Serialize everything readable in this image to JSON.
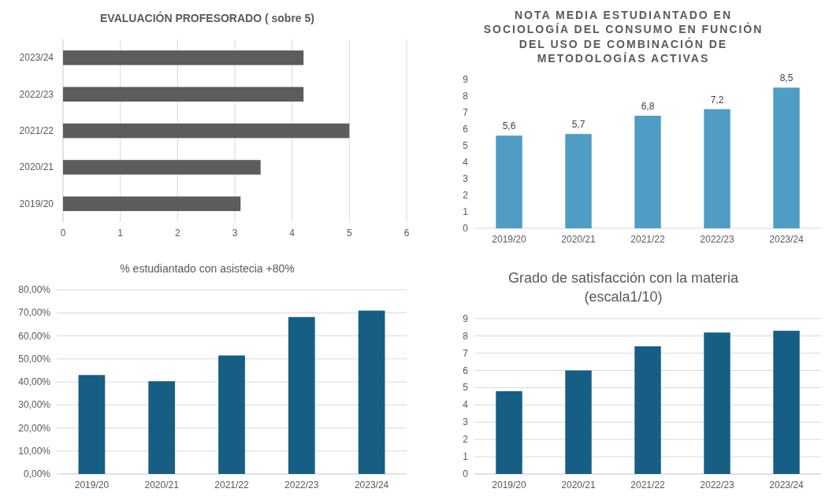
{
  "chart_data": [
    {
      "type": "bar",
      "title": "EVALUACIÓN PROFESORADO ( sobre 5)",
      "orientation": "horizontal",
      "categories": [
        "2023/24",
        "2022/23",
        "2021/22",
        "2020/21",
        "2019/20"
      ],
      "values": [
        4.2,
        4.2,
        5.0,
        3.45,
        3.1
      ],
      "color": "#5c5c5c",
      "xlim": [
        0,
        6
      ],
      "xticks": [
        0,
        1,
        2,
        3,
        4,
        5,
        6
      ],
      "grid": "x"
    },
    {
      "type": "bar",
      "title": "NOTA MEDIA ESTUDIANTADO EN SOCIOLOGÍA DEL CONSUMO EN FUNCIÓN DEL USO DE COMBINACIÓN DE METODOLOGÍAS ACTIVAS",
      "categories": [
        "2019/20",
        "2020/21",
        "2021/22",
        "2022/23",
        "2023/24"
      ],
      "values": [
        5.6,
        5.7,
        6.8,
        7.2,
        8.5
      ],
      "value_labels": [
        "5,6",
        "5,7",
        "6,8",
        "7,2",
        "8,5"
      ],
      "color": "#4f9cc4",
      "ylim": [
        0,
        9
      ],
      "yticks": [
        0,
        1,
        2,
        3,
        4,
        5,
        6,
        7,
        8,
        9
      ],
      "grid": false
    },
    {
      "type": "bar",
      "title": "% estudiantado con asistecia +80%",
      "categories": [
        "2019/20",
        "2020/21",
        "2021/22",
        "2022/23",
        "2023/24"
      ],
      "values": [
        43,
        40.3,
        51.5,
        68.2,
        71
      ],
      "color": "#165e83",
      "ylim": [
        0,
        80
      ],
      "yticks": [
        {
          "value": 0,
          "label": "0,00%"
        },
        {
          "value": 10,
          "label": "10,00%"
        },
        {
          "value": 20,
          "label": "20,00%"
        },
        {
          "value": 30,
          "label": "30,00%"
        },
        {
          "value": 40,
          "label": "40,00%"
        },
        {
          "value": 50,
          "label": "50,00%"
        },
        {
          "value": 60,
          "label": "60,00%"
        },
        {
          "value": 70,
          "label": "70,00%"
        },
        {
          "value": 80,
          "label": "80,00%"
        }
      ],
      "grid": "y"
    },
    {
      "type": "bar",
      "title": "Grado de satisfacción con la materia (escala1/10)",
      "categories": [
        "2019/20",
        "2020/21",
        "2021/22",
        "2022/23",
        "2023/24"
      ],
      "values": [
        4.8,
        6.0,
        7.4,
        8.2,
        8.3
      ],
      "color": "#165e83",
      "ylim": [
        0,
        9
      ],
      "yticks": [
        0,
        1,
        2,
        3,
        4,
        5,
        6,
        7,
        8,
        9
      ],
      "grid": "y"
    }
  ]
}
